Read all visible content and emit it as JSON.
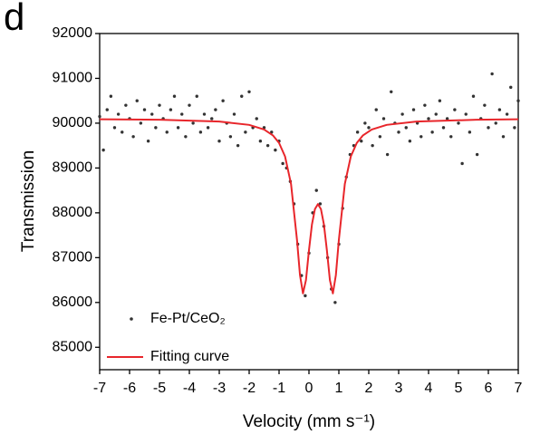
{
  "chart_data": {
    "type": "scatter",
    "panel_label": "d",
    "x_label": "Velocity (mm s⁻¹)",
    "y_label": "Transmission",
    "xlim": [
      -7,
      7
    ],
    "ylim": [
      84500,
      92000
    ],
    "xticks": [
      -7,
      -6,
      -5,
      -4,
      -3,
      -2,
      -1,
      0,
      1,
      2,
      3,
      4,
      5,
      6,
      7
    ],
    "yticks": [
      85000,
      86000,
      87000,
      88000,
      89000,
      90000,
      91000,
      92000
    ],
    "legend": "lower left",
    "series": [
      {
        "name": "Fe-Pt/CeO₂",
        "type": "scatter",
        "color": "#333333",
        "x": [
          -7,
          -6.875,
          -6.75,
          -6.625,
          -6.5,
          -6.375,
          -6.25,
          -6.125,
          -6,
          -5.875,
          -5.75,
          -5.625,
          -5.5,
          -5.375,
          -5.25,
          -5.125,
          -5,
          -4.875,
          -4.75,
          -4.625,
          -4.5,
          -4.375,
          -4.25,
          -4.125,
          -4,
          -3.875,
          -3.75,
          -3.625,
          -3.5,
          -3.375,
          -3.25,
          -3.125,
          -3,
          -2.875,
          -2.75,
          -2.625,
          -2.5,
          -2.375,
          -2.25,
          -2.125,
          -2,
          -1.875,
          -1.75,
          -1.625,
          -1.5,
          -1.375,
          -1.25,
          -1.125,
          -1,
          -0.875,
          -0.75,
          -0.625,
          -0.5,
          -0.375,
          -0.25,
          -0.125,
          0,
          0.125,
          0.25,
          0.375,
          0.5,
          0.625,
          0.75,
          0.875,
          1,
          1.125,
          1.25,
          1.375,
          1.5,
          1.625,
          1.75,
          1.875,
          2,
          2.125,
          2.25,
          2.375,
          2.5,
          2.625,
          2.75,
          2.875,
          3,
          3.125,
          3.25,
          3.375,
          3.5,
          3.625,
          3.75,
          3.875,
          4,
          4.125,
          4.25,
          4.375,
          4.5,
          4.625,
          4.75,
          4.875,
          5,
          5.125,
          5.25,
          5.375,
          5.5,
          5.625,
          5.75,
          5.875,
          6,
          6.125,
          6.25,
          6.375,
          6.5,
          6.625,
          6.75,
          6.875,
          7
        ],
        "values": [
          90150,
          89400,
          90300,
          90600,
          89900,
          90200,
          89800,
          90400,
          90100,
          89700,
          90500,
          90000,
          90300,
          89600,
          90200,
          89900,
          90400,
          90100,
          89800,
          90300,
          90600,
          89900,
          90200,
          89700,
          90400,
          90000,
          90600,
          89800,
          90200,
          89900,
          90100,
          90300,
          89600,
          90500,
          90000,
          89700,
          90200,
          89500,
          90600,
          89800,
          90700,
          89900,
          90100,
          89600,
          89900,
          89500,
          89800,
          89400,
          89600,
          89100,
          89000,
          88700,
          88200,
          87300,
          86600,
          86150,
          87100,
          88000,
          88500,
          88200,
          87700,
          87000,
          86300,
          86000,
          87300,
          88100,
          88800,
          89300,
          89500,
          89800,
          89600,
          90000,
          89900,
          89500,
          90300,
          89700,
          90100,
          89300,
          90700,
          90000,
          89800,
          90200,
          89900,
          89600,
          90300,
          90000,
          89700,
          90400,
          90100,
          89800,
          90200,
          90500,
          89900,
          90100,
          89700,
          90300,
          90000,
          89100,
          90200,
          89800,
          90600,
          89300,
          90100,
          90400,
          89900,
          91100,
          90000,
          90300,
          89700,
          90200,
          90800,
          89900,
          90500
        ]
      },
      {
        "name": "Fitting curve",
        "type": "line",
        "color": "#e8262b",
        "x": [
          -7,
          -5,
          -3,
          -2,
          -1.5,
          -1.2,
          -1,
          -0.8,
          -0.6,
          -0.4,
          -0.3,
          -0.2,
          -0.1,
          0,
          0.1,
          0.2,
          0.3,
          0.4,
          0.5,
          0.6,
          0.7,
          0.8,
          0.9,
          1,
          1.2,
          1.4,
          1.6,
          1.8,
          2.1,
          2.6,
          3.6,
          5.6,
          7
        ],
        "values": [
          90088,
          90076,
          90037,
          89962,
          89858,
          89724,
          89559,
          89258,
          88646,
          87395,
          86610,
          86202,
          86500,
          87163,
          87741,
          88084,
          88195,
          88084,
          87741,
          87163,
          86500,
          86202,
          86610,
          87395,
          88646,
          89258,
          89559,
          89724,
          89858,
          89962,
          90037,
          90076,
          90086
        ]
      }
    ]
  }
}
